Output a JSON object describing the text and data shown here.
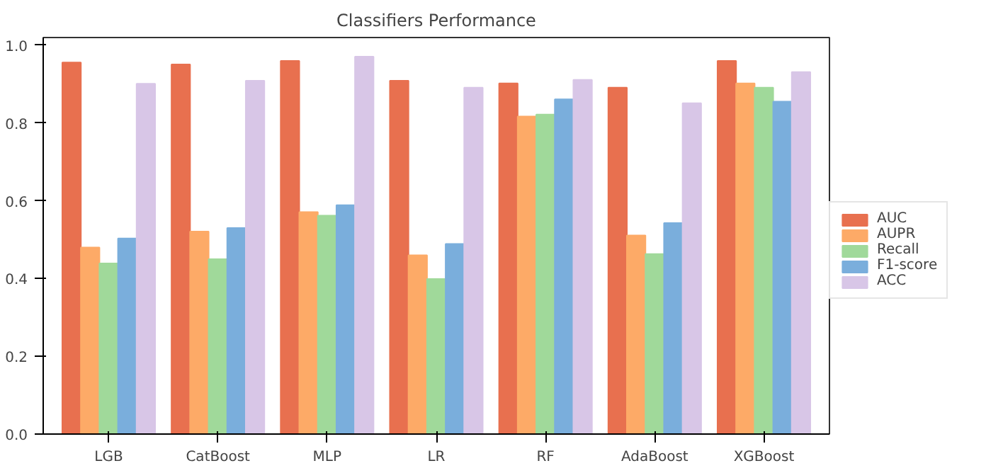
{
  "chart_data": {
    "type": "bar",
    "title": "Classifiers Performance",
    "categories": [
      "LGB",
      "CatBoost",
      "MLP",
      "LR",
      "RF",
      "AdaBoost",
      "XGBoost"
    ],
    "series": [
      {
        "name": "AUC",
        "color": "#e8704f",
        "values": [
          0.956,
          0.951,
          0.96,
          0.909,
          0.902,
          0.891,
          0.96
        ]
      },
      {
        "name": "AUPR",
        "color": "#fdaa67",
        "values": [
          0.48,
          0.521,
          0.571,
          0.46,
          0.817,
          0.511,
          0.902
        ]
      },
      {
        "name": "Recall",
        "color": "#a0d99a",
        "values": [
          0.439,
          0.45,
          0.562,
          0.399,
          0.822,
          0.463,
          0.891
        ]
      },
      {
        "name": "F1-score",
        "color": "#7aaedc",
        "values": [
          0.503,
          0.53,
          0.589,
          0.489,
          0.861,
          0.543,
          0.855
        ]
      },
      {
        "name": "ACC",
        "color": "#d8c6e7",
        "values": [
          0.901,
          0.909,
          0.971,
          0.891,
          0.911,
          0.851,
          0.931
        ]
      }
    ],
    "ylim": [
      0,
      1.02
    ],
    "yticks": [
      {
        "value": 0,
        "label": "0.0"
      },
      0.2,
      0.4,
      0.6,
      0.8,
      {
        "value": 1,
        "label": "1.0"
      }
    ],
    "grid": false,
    "legend": "right"
  }
}
